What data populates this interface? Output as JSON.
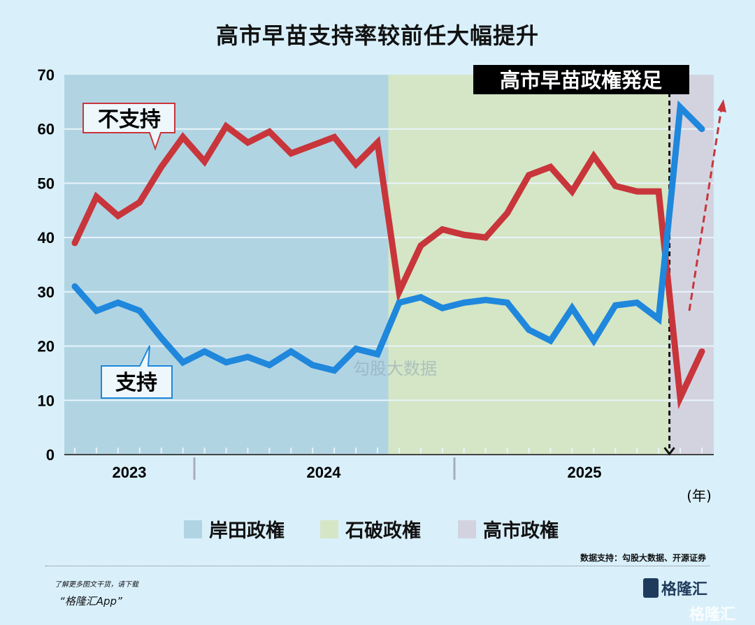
{
  "title": "高市早苗支持率较前任大幅提升",
  "chart_data": {
    "type": "line",
    "title": "高市早苗支持率较前任大幅提升",
    "ylim": [
      0,
      70
    ],
    "yticks": [
      0,
      10,
      20,
      30,
      40,
      50,
      60,
      70
    ],
    "grid": true,
    "x_unit_label": "(年)",
    "year_labels": [
      "2023",
      "2024",
      "2025"
    ],
    "series": [
      {
        "name": "不支持",
        "color": "#c8353a",
        "values": [
          39,
          47.5,
          44,
          46.5,
          53,
          58.5,
          54,
          60.5,
          57.5,
          59.5,
          55.5,
          57,
          58.5,
          53.5,
          57.5,
          30,
          38.5,
          41.5,
          40.5,
          40,
          44.5,
          51.5,
          53,
          48.5,
          55,
          49.5,
          48.5,
          48.5,
          10.5,
          19
        ]
      },
      {
        "name": "支持",
        "color": "#1f87dc",
        "values": [
          31,
          26.5,
          28,
          26.5,
          21.5,
          17,
          19,
          17,
          18,
          16.5,
          19,
          16.5,
          15.5,
          19.5,
          18.5,
          28,
          29,
          27,
          28,
          28.5,
          28,
          23,
          21,
          27,
          21,
          27.5,
          28,
          25,
          64,
          60
        ]
      }
    ],
    "regimes": [
      {
        "name": "岸田政権",
        "color": "#b1d4e3"
      },
      {
        "name": "石破政権",
        "color": "#d4e6c6"
      },
      {
        "name": "高市政権",
        "color": "#d3d3e0"
      }
    ],
    "annotation": "高市早苗政権発足",
    "legend_placement": "bottom"
  },
  "source": "数据支持：勾股大数据、开源证券",
  "promo": {
    "line1": "了解更多图文干货，请下载",
    "line2": "“格隆汇App”"
  },
  "logo": "格隆汇",
  "watermark": "勾股大数据"
}
